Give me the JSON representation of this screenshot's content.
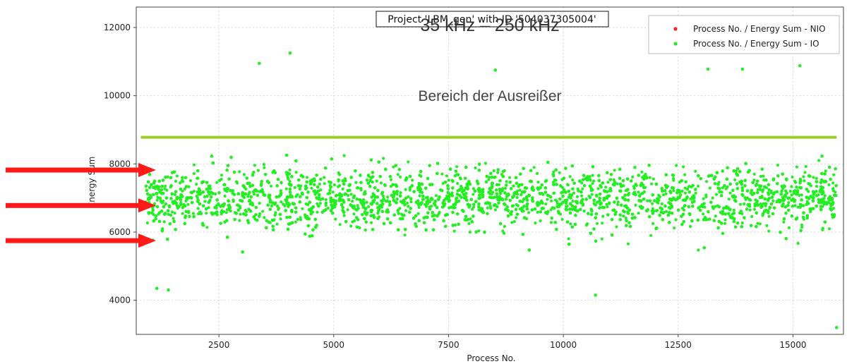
{
  "chart_data": {
    "type": "scatter",
    "title": "Project 'LBM_gen' with ID '504037305004'",
    "xlabel": "Process No.",
    "ylabel": "Energy Sum",
    "xlim": [
      700,
      16100
    ],
    "ylim": [
      3000,
      12600
    ],
    "x_ticks": [
      2500,
      5000,
      7500,
      10000,
      12500,
      15000
    ],
    "y_ticks": [
      4000,
      6000,
      8000,
      10000,
      12000
    ],
    "grid": true,
    "legend_position": "top-right",
    "series": [
      {
        "name": "Process No. / Energy Sum - NIO",
        "color": "#ff1f1f",
        "values": []
      },
      {
        "name": "Process No. / Energy Sum - IO",
        "color": "#22ee22",
        "x_range": [
          900,
          15950
        ],
        "y_dense_range": [
          5500,
          8500
        ],
        "y_mean": 7000,
        "outliers": [
          {
            "x": 4050,
            "y": 11250
          },
          {
            "x": 3380,
            "y": 10950
          },
          {
            "x": 8520,
            "y": 10750
          },
          {
            "x": 13150,
            "y": 10780
          },
          {
            "x": 13900,
            "y": 10780
          },
          {
            "x": 15150,
            "y": 10880
          },
          {
            "x": 1150,
            "y": 4350
          },
          {
            "x": 1400,
            "y": 4300
          },
          {
            "x": 10700,
            "y": 4150
          },
          {
            "x": 15950,
            "y": 3200
          }
        ]
      }
    ],
    "threshold_line": {
      "y": 8780,
      "x_range": [
        800,
        15950
      ],
      "color": "#9ccc2a"
    },
    "annotations": [
      {
        "text": "35 kHz – 250 kHz",
        "x": 8400,
        "y": 11900
      },
      {
        "text": "Bereich der Ausreißer",
        "x": 8400,
        "y": 9850
      }
    ],
    "arrows": [
      {
        "y": 7820,
        "color": "#ff1a1a"
      },
      {
        "y": 6780,
        "color": "#ff1a1a"
      },
      {
        "y": 5750,
        "color": "#ff1a1a"
      }
    ]
  }
}
